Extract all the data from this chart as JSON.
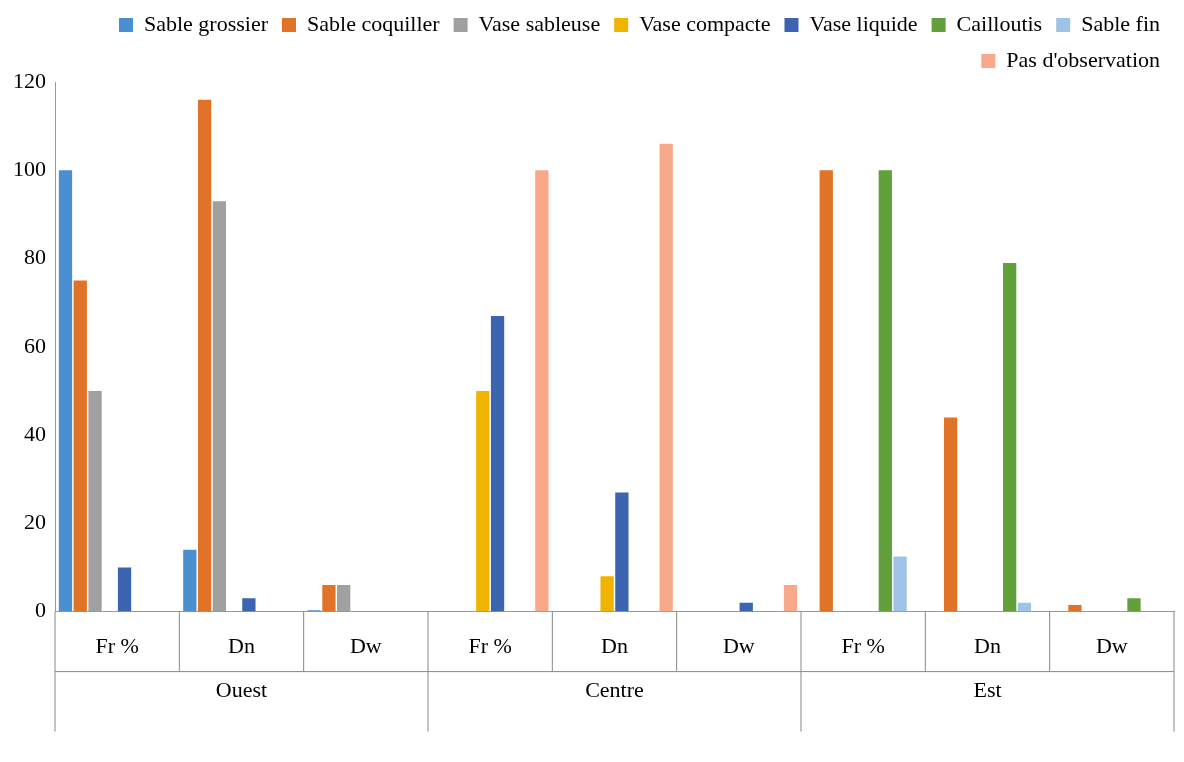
{
  "chart_data": {
    "type": "bar",
    "categories": [
      "Fr %",
      "Dn",
      "Dw",
      "Fr %",
      "Dn",
      "Dw",
      "Fr %",
      "Dn",
      "Dw"
    ],
    "annotations": [
      "Ouest",
      "Centre",
      "Est"
    ],
    "series": [
      {
        "name": "Sable grossier",
        "color": "#4a8fcf",
        "values": [
          100,
          14,
          0.3,
          0,
          0,
          0,
          0,
          0,
          0
        ]
      },
      {
        "name": "Sable coquiller",
        "color": "#e07328",
        "values": [
          75,
          116,
          6,
          0,
          0,
          0,
          100,
          44,
          1.5
        ]
      },
      {
        "name": "Vase sableuse",
        "color": "#a0a0a0",
        "values": [
          50,
          93,
          6,
          0,
          0,
          0,
          0,
          0,
          0
        ]
      },
      {
        "name": "Vase compacte",
        "color": "#f0b400",
        "values": [
          0,
          0,
          0,
          50,
          8,
          0,
          0,
          0,
          0
        ]
      },
      {
        "name": "Vase liquide",
        "color": "#3d64b0",
        "values": [
          10,
          3,
          0,
          67,
          27,
          2,
          0,
          0,
          0
        ]
      },
      {
        "name": "Cailloutis",
        "color": "#62a03c",
        "values": [
          0,
          0,
          0,
          0,
          0,
          0,
          100,
          79,
          3
        ]
      },
      {
        "name": "Sable fin",
        "color": "#9dc3e6",
        "values": [
          0,
          0,
          0,
          0,
          0,
          0,
          12.5,
          2,
          0
        ]
      },
      {
        "name": "Pas d'observation",
        "color": "#f9a98a",
        "values": [
          0,
          0,
          0,
          100,
          106,
          6,
          0,
          0,
          0
        ]
      }
    ],
    "ylim": [
      0,
      120
    ],
    "yticks": [
      0,
      20,
      40,
      60,
      80,
      100,
      120
    ],
    "grid": false,
    "legend": "top"
  }
}
